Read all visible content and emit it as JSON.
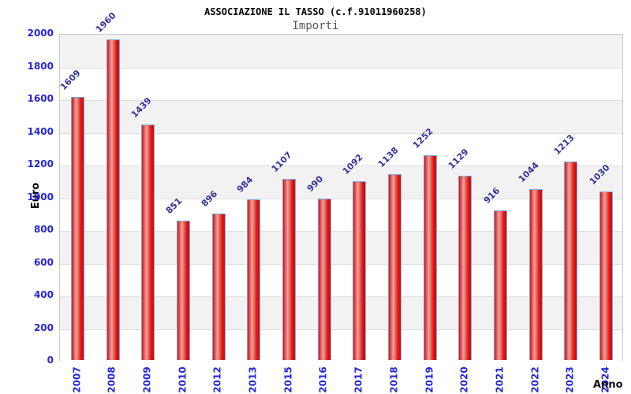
{
  "header": {
    "title": "ASSOCIAZIONE IL TASSO (c.f.91011960258)",
    "subtitle": "Importi"
  },
  "chart_data": {
    "type": "bar",
    "title": "ASSOCIAZIONE IL TASSO (c.f.91011960258)",
    "subtitle": "Importi",
    "categories": [
      "2007",
      "2008",
      "2009",
      "2010",
      "2012",
      "2013",
      "2015",
      "2016",
      "2017",
      "2018",
      "2019",
      "2020",
      "2021",
      "2022",
      "2023",
      "2024"
    ],
    "values": [
      1609,
      1960,
      1439,
      851,
      896,
      984,
      1107,
      990,
      1092,
      1138,
      1252,
      1129,
      916,
      1044,
      1213,
      1030
    ],
    "xlabel": "Anno",
    "ylabel": "Euro",
    "ylim": [
      0,
      2000
    ],
    "ytick_step": 200,
    "ytick_labels": [
      "0",
      "200",
      "400",
      "600",
      "800",
      "1000",
      "1200",
      "1400",
      "1600",
      "1800",
      "2000"
    ],
    "grid": "horizontal-alternating-bands",
    "legend": "none",
    "colors": {
      "bar_edge": "#7ba7dd",
      "bar_gradient": [
        "#d81414",
        "#eca49b",
        "#e01212",
        "#c51010"
      ],
      "axis_tick_label": "#2525d8",
      "value_label": "#333399",
      "band_gray": "#f2f2f2",
      "band_white": "#ffffff",
      "gridline": "#dddddd",
      "plot_border": "#c9c9c9",
      "title": "#000000",
      "subtitle": "#555555"
    }
  }
}
